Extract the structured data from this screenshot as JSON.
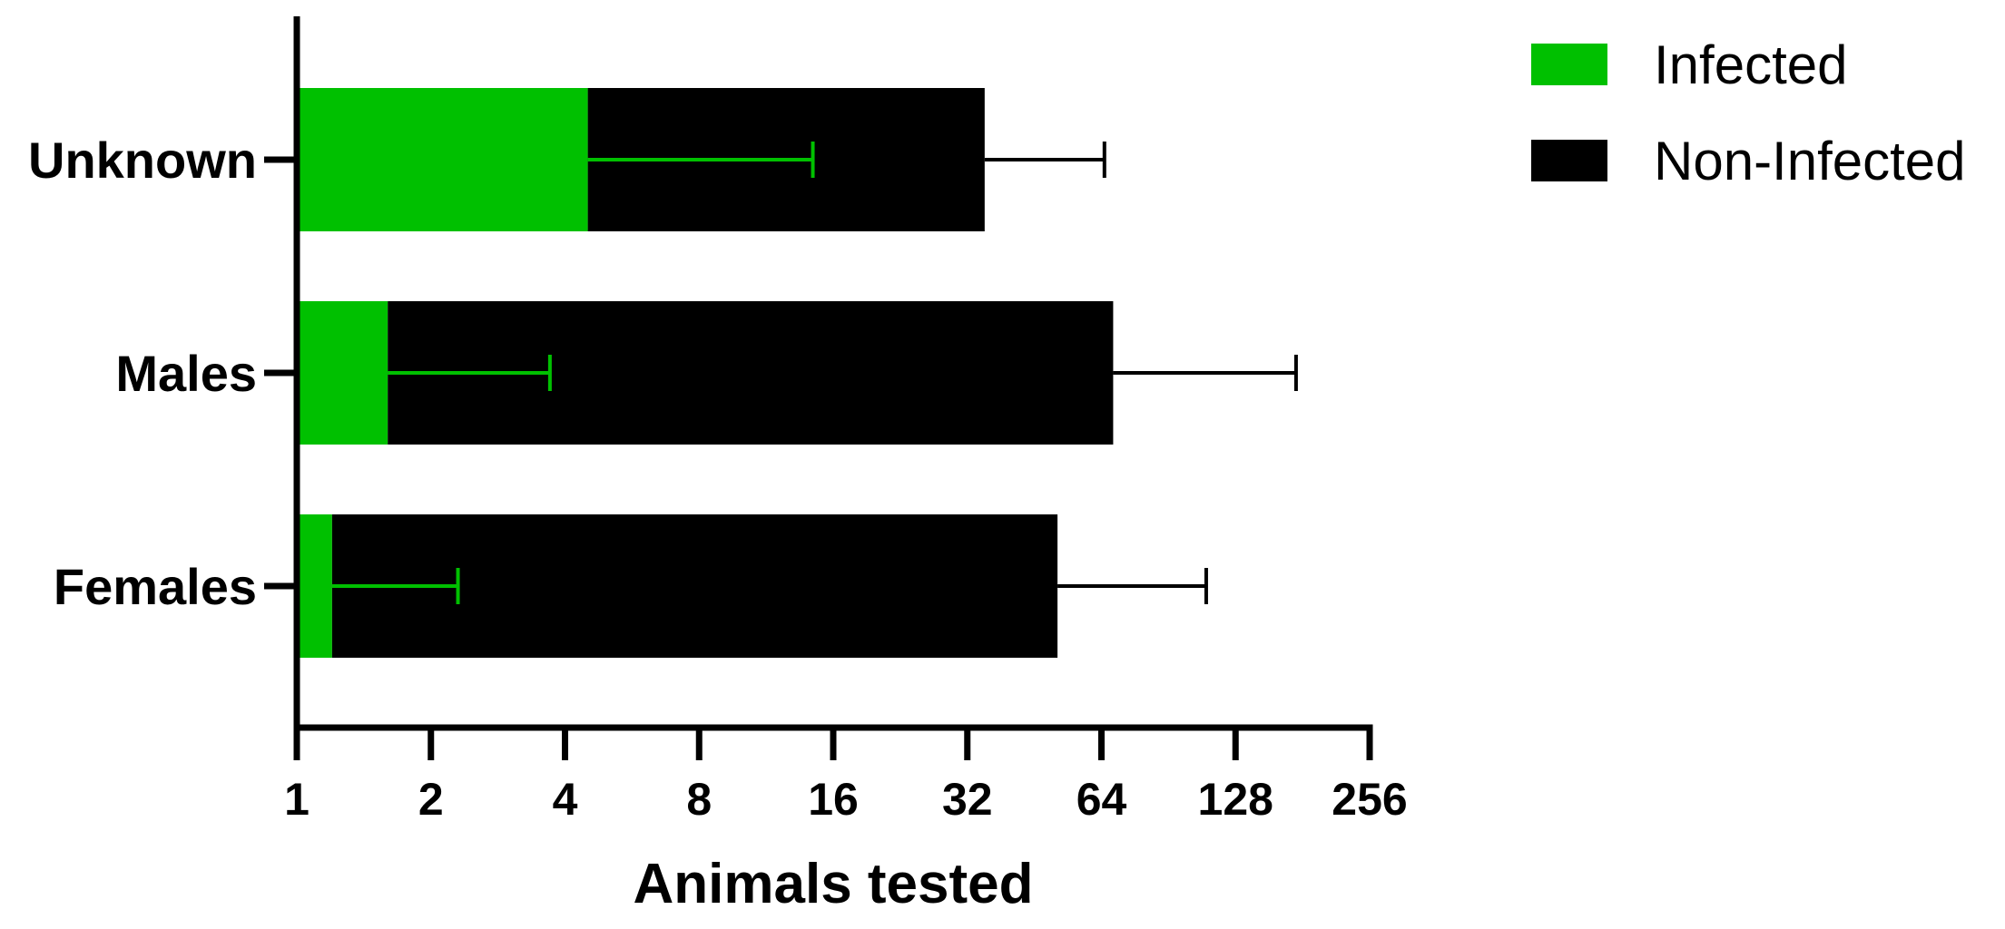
{
  "chart_data": {
    "type": "bar",
    "orientation": "horizontal",
    "stacking": "stacked",
    "xscale": "log2",
    "xlim": [
      1,
      256
    ],
    "xticks": [
      1,
      2,
      4,
      8,
      16,
      32,
      64,
      128,
      256
    ],
    "xtick_labels": [
      "1",
      "2",
      "4",
      "8",
      "16",
      "32",
      "64",
      "128",
      "256"
    ],
    "xlabel": "Animals tested",
    "categories": [
      "Unknown",
      "Males",
      "Females"
    ],
    "series": [
      {
        "name": "Infected",
        "color": "#00c000",
        "values": [
          4.5,
          1.6,
          1.2
        ],
        "error_upper": [
          14.4,
          3.7,
          2.3
        ]
      },
      {
        "name": "Non-Infected",
        "color": "#000000",
        "values": [
          35,
          68,
          51
        ],
        "error_upper": [
          65,
          175,
          110
        ]
      }
    ],
    "legend": {
      "position": "top-right",
      "items": [
        {
          "label": "Infected",
          "color": "#00c000"
        },
        {
          "label": "Non-Infected",
          "color": "#000000"
        }
      ]
    },
    "grid": false
  }
}
